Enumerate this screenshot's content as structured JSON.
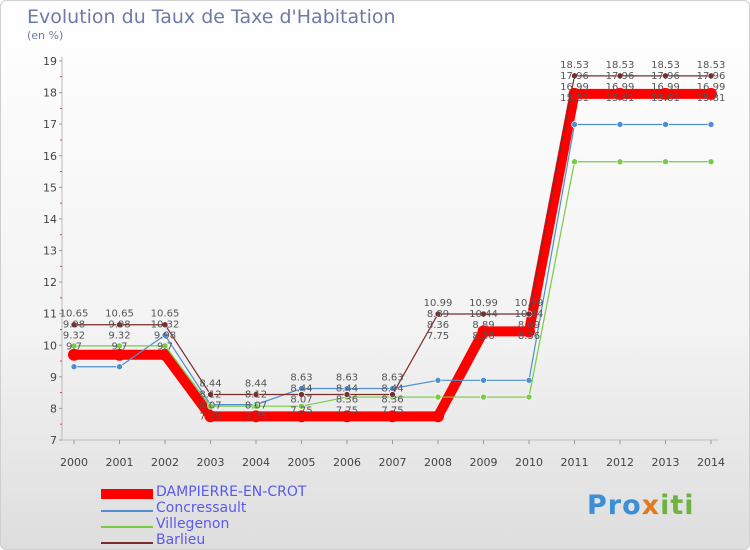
{
  "title": "Evolution du Taux de Taxe d'Habitation",
  "subtitle": "(en %)",
  "logo": {
    "p1": "Pro",
    "p2": "x",
    "p3": "iti"
  },
  "chart_data": {
    "type": "line",
    "x": [
      "2000",
      "2001",
      "2002",
      "2003",
      "2004",
      "2005",
      "2006",
      "2007",
      "2008",
      "2009",
      "2010",
      "2011",
      "2012",
      "2013",
      "2014"
    ],
    "ylim": [
      7,
      19
    ],
    "yticks": [
      7,
      8,
      9,
      10,
      11,
      12,
      13,
      14,
      15,
      16,
      17,
      18,
      19
    ],
    "grid": false,
    "legend": "bottom-left",
    "series": [
      {
        "name": "DAMPIERRE-EN-CROT",
        "color": "#ff0000",
        "width": 10,
        "labels": false,
        "values": [
          9.7,
          9.7,
          9.7,
          7.75,
          7.75,
          7.75,
          7.75,
          7.75,
          7.75,
          10.44,
          10.44,
          17.96,
          17.96,
          17.96,
          17.96
        ]
      },
      {
        "name": "Concressault",
        "color": "#4f8fcf",
        "width": 1.2,
        "labels": true,
        "values": [
          9.32,
          9.32,
          10.32,
          8.12,
          8.12,
          8.63,
          8.63,
          8.63,
          8.89,
          8.89,
          8.89,
          16.99,
          16.99,
          16.99,
          16.99
        ]
      },
      {
        "name": "Villegenon",
        "color": "#77cc44",
        "width": 1.2,
        "labels": true,
        "values": [
          9.98,
          9.98,
          9.98,
          8.07,
          8.07,
          8.07,
          8.36,
          8.36,
          8.36,
          8.36,
          8.36,
          15.81,
          15.81,
          15.81,
          15.81
        ]
      },
      {
        "name": "Barlieu",
        "color": "#7a2b2b",
        "width": 1.2,
        "labels": true,
        "values": [
          10.65,
          10.65,
          10.65,
          8.44,
          8.44,
          8.44,
          8.44,
          8.44,
          10.99,
          10.99,
          10.99,
          18.53,
          18.53,
          18.53,
          18.53
        ]
      }
    ],
    "value_labels": [
      {
        "x": "2000",
        "lines": [
          "10.65",
          "9.98",
          "9.32",
          "9.7"
        ]
      },
      {
        "x": "2001",
        "lines": [
          "10.65",
          "9.98",
          "9.32",
          "9.7"
        ]
      },
      {
        "x": "2002",
        "lines": [
          "10.65",
          "10.32",
          "9.98",
          "9.7"
        ]
      },
      {
        "x": "2003",
        "lines": [
          "8.44",
          "8.12",
          "8.07",
          "7.75"
        ]
      },
      {
        "x": "2004",
        "lines": [
          "8.44",
          "8.12",
          "8.07",
          "7.75"
        ]
      },
      {
        "x": "2005",
        "lines": [
          "8.63",
          "8.44",
          "8.07",
          "7.75"
        ]
      },
      {
        "x": "2006",
        "lines": [
          "8.63",
          "8.44",
          "8.36",
          "7.75"
        ]
      },
      {
        "x": "2007",
        "lines": [
          "8.63",
          "8.44",
          "8.36",
          "7.75"
        ]
      },
      {
        "x": "2008",
        "lines": [
          "10.99",
          "8.89",
          "8.36",
          "7.75"
        ]
      },
      {
        "x": "2009",
        "lines": [
          "10.99",
          "10.44",
          "8.89",
          "8.36"
        ]
      },
      {
        "x": "2010",
        "lines": [
          "10.99",
          "10.44",
          "8.89",
          "8.36"
        ]
      },
      {
        "x": "2011",
        "lines": [
          "18.53",
          "17.96",
          "16.99",
          "15.81"
        ]
      },
      {
        "x": "2012",
        "lines": [
          "18.53",
          "17.96",
          "16.99",
          "15.81"
        ]
      },
      {
        "x": "2013",
        "lines": [
          "18.53",
          "17.96",
          "16.99",
          "15.81"
        ]
      },
      {
        "x": "2014",
        "lines": [
          "18.53",
          "17.96",
          "16.99",
          "15.81"
        ]
      }
    ]
  }
}
